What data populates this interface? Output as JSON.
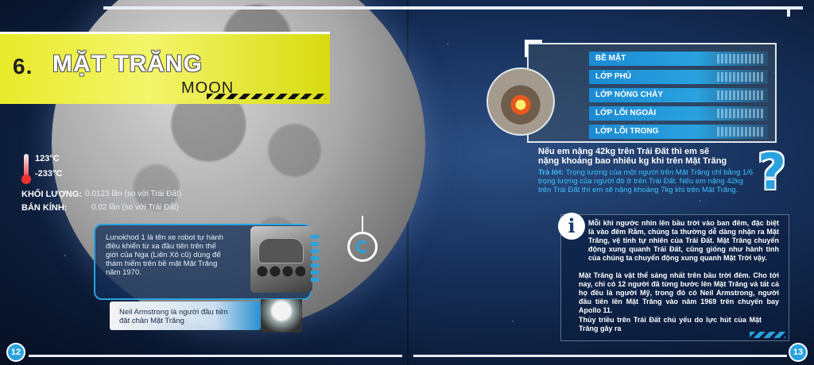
{
  "left_page": {
    "title": {
      "number": "6.",
      "text": "MẶT TRĂNG",
      "subtitle": "MOON"
    },
    "temperature": {
      "high": "123°C",
      "low": "-233°C"
    },
    "stats": [
      {
        "label": "KHỐI LƯỢNG:",
        "value": "0.0123 lần (so với Trái Đất)"
      },
      {
        "label": "BÁN KÍNH:",
        "value": "0.02 lần (so với Trái Đất)"
      }
    ],
    "lunokhod_lines": [
      "Lunokhod 1 là tên xe robot tự hành",
      "điều khiển từ xa đầu tiên trên thế",
      "giới của Nga (Liên Xô cũ) dùng để",
      "thám hiểm trên bề mặt Mặt Trăng",
      "năm 1970."
    ],
    "armstrong_lines": [
      "Neil Armstrong là người đầu tiên",
      "đặt chân Mặt Trăng"
    ],
    "page_number": "12"
  },
  "right_page": {
    "layers": [
      "BỀ MẶT",
      "LỚP PHỦ",
      "LỚP NÓNG CHẢY",
      "LỚP LÕI NGOÀI",
      "LỚP LÕI TRONG"
    ],
    "question_lines": [
      "Nếu em nặng 42kg trên Trái Đất thì em sẽ",
      "nặng khoảng bao nhiêu kg khi trên Mặt Trăng"
    ],
    "answer": {
      "prefix": "Trả lời:",
      "line1": " Trọng lượng của một người trên Mặt Trăng chỉ bằng 1/6",
      "line2": "trọng lượng của người đó ở trên Trái Đất. Nếu em nặng 42kg",
      "line3": "trên Trái Đất thì em sẽ nặng khoảng 7kg khi trên Mặt Trăng."
    },
    "info_icon": "i",
    "question_mark": "?",
    "info_paragraphs": [
      "Mỗi khi ngước nhìn lên bầu trời vào ban đêm, đặc biệt là vào đêm Rằm, chúng ta thường dễ dàng nhận ra Mặt Trăng, vệ tinh tự nhiên của Trái Đất. Mặt Trăng chuyển động xung quanh Trái Đất, cũng giống như hành tinh của chúng ta chuyển động xung quanh Mặt Trời vậy.",
      "Mặt Trăng là vật thể sáng nhất trên bầu trời đêm. Cho tới nay, chỉ có 12 người đã từng bước lên Mặt Trăng và tất cả họ đều là người Mỹ, trong đó có Neil Armstrong, người đầu tiên lên Mặt Trăng vào năm 1969 trên chuyến bay Apollo 11.",
      "Thủy triều trên Trái Đất chủ yếu do lực hút của Mặt Trăng gây ra"
    ],
    "page_number": "13"
  },
  "colors": {
    "accent_blue": "#2aa2df",
    "banner_yellow": "#e8ea2a",
    "text_cyan": "#3dc2ff"
  },
  "icons": [
    "thermometer-icon",
    "info-icon",
    "question-mark-icon",
    "target-icon"
  ]
}
